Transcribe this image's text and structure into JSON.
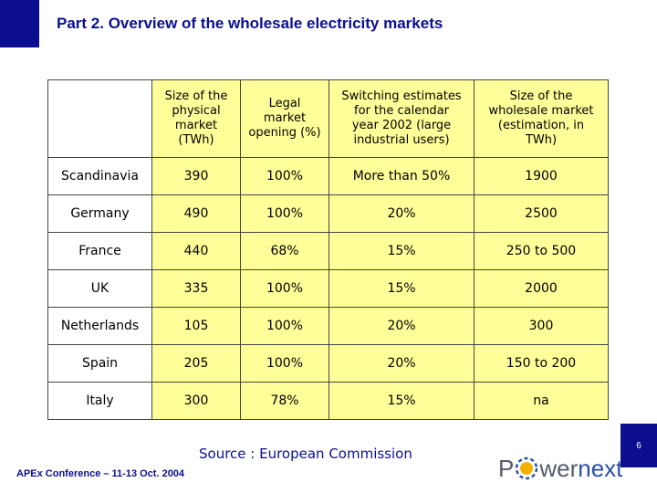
{
  "title": "Part 2. Overview of the wholesale electricity markets",
  "table": {
    "headers": [
      "",
      "Size of the\nphysical\nmarket\n(TWh)",
      "Legal\nmarket\nopening (%)",
      "Switching estimates\nfor the calendar\nyear 2002 (large\nindustrial users)",
      "Size of the\nwholesale market\n(estimation, in\nTWh)"
    ],
    "rows": [
      [
        "Scandinavia",
        "390",
        "100%",
        "More than 50%",
        "1900"
      ],
      [
        "Germany",
        "490",
        "100%",
        "20%",
        "2500"
      ],
      [
        "France",
        "440",
        "68%",
        "15%",
        "250 to 500"
      ],
      [
        "UK",
        "335",
        "100%",
        "15%",
        "2000"
      ],
      [
        "Netherlands",
        "105",
        "100%",
        "20%",
        "300"
      ],
      [
        "Spain",
        "205",
        "100%",
        "20%",
        "150 to 200"
      ],
      [
        "Italy",
        "300",
        "78%",
        "15%",
        "na"
      ]
    ]
  },
  "source": "Source : European Commission",
  "footer": "APEx Conference – 11-13 Oct. 2004",
  "logo": {
    "part1": "P",
    "part2": "wer",
    "part3": "next"
  },
  "page_number": "6",
  "colors": {
    "brand_blue": "#0b0f8f",
    "table_fill": "#ffff99",
    "logo_blue": "#2b4fa8",
    "logo_grey": "#555b6b"
  }
}
